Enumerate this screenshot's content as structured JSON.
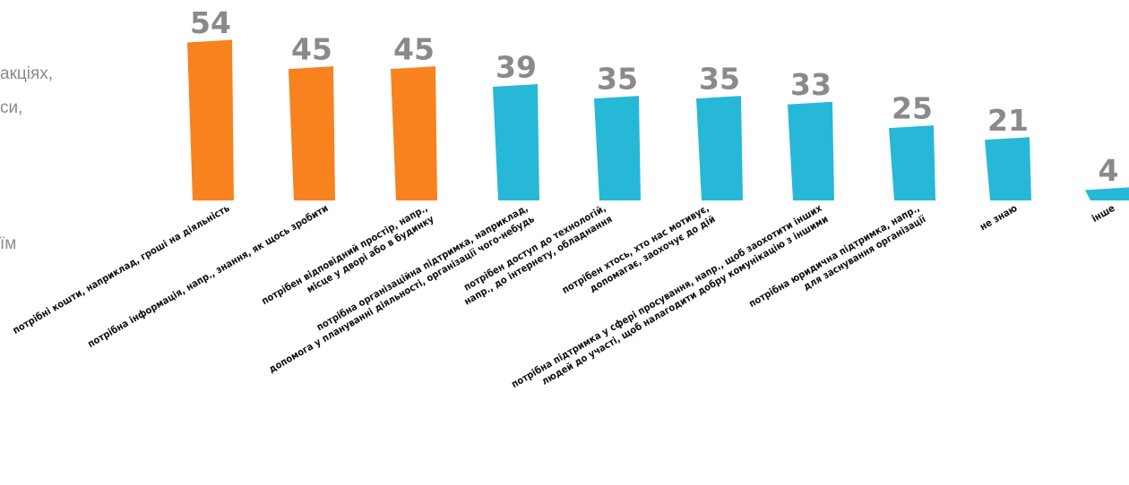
{
  "side_text": [
    "акціях,",
    "си,",
    "їм"
  ],
  "colors": {
    "highlight": "#f7821e",
    "regular": "#27b8d8",
    "value_label": "#8a8a8a"
  },
  "chart_data": {
    "type": "bar",
    "title": "",
    "xlabel": "",
    "ylabel": "",
    "ylim": [
      0,
      60
    ],
    "grid": false,
    "highlighted_top_n": 3,
    "categories": [
      [
        "потрібні кошти, наприклад, гроші на діяльність"
      ],
      [
        "потрібна інформація, напр., знання, як щось зробити"
      ],
      [
        "потрібен відповідний простір, напр.,",
        "місце у дворі або в будинку"
      ],
      [
        "потрібна організаційна підтримка, наприклад,",
        "допомога у плануванні діяльності, організації чого-небудь"
      ],
      [
        "потрібен доступ до технологій,",
        "напр., до інтернету, обладнання"
      ],
      [
        "потрібен хтось, хто нас мотивує,",
        "допомагає, заохочує до дій"
      ],
      [
        "потрібна підтримка у сфері просування, напр., щоб заохотити інших",
        "людей до участі, щоб налагодити добру комунікацію з іншими"
      ],
      [
        "потрібна юридична підтримка, напр.,",
        "для заснування організації"
      ],
      [
        "не знаю"
      ],
      [
        "інше"
      ]
    ],
    "values": [
      54,
      45,
      45,
      39,
      35,
      35,
      33,
      25,
      21,
      4
    ]
  }
}
